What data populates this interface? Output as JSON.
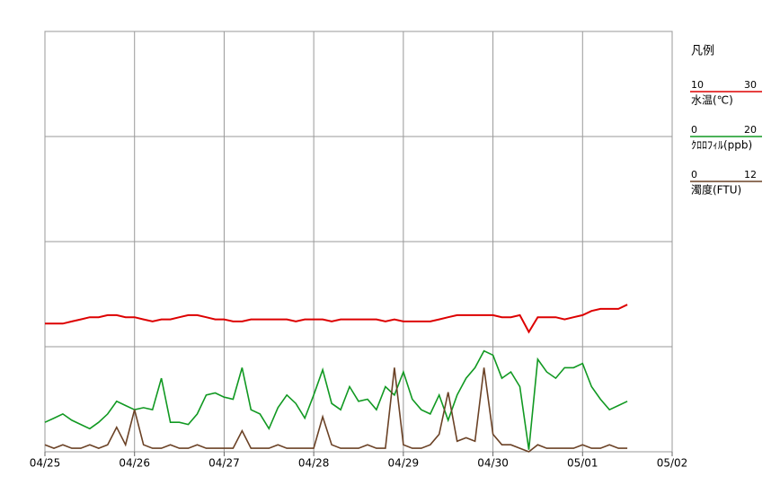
{
  "chart_data": {
    "type": "line",
    "legend_title": "凡例",
    "grid": true,
    "xlim": [
      0,
      7
    ],
    "xticks": [
      {
        "value": 0,
        "label": "04/25"
      },
      {
        "value": 1,
        "label": "04/26"
      },
      {
        "value": 2,
        "label": "04/27"
      },
      {
        "value": 3,
        "label": "04/28"
      },
      {
        "value": 4,
        "label": "04/29"
      },
      {
        "value": 5,
        "label": "04/30"
      },
      {
        "value": 6,
        "label": "05/01"
      },
      {
        "value": 7,
        "label": "05/02"
      }
    ],
    "x": [
      0,
      0.1,
      0.2,
      0.3,
      0.4,
      0.5,
      0.6,
      0.7,
      0.8,
      0.9,
      1,
      1.1,
      1.2,
      1.3,
      1.4,
      1.5,
      1.6,
      1.7,
      1.8,
      1.9,
      2,
      2.1,
      2.2,
      2.3,
      2.4,
      2.5,
      2.6,
      2.7,
      2.8,
      2.9,
      3,
      3.1,
      3.2,
      3.3,
      3.4,
      3.5,
      3.6,
      3.7,
      3.8,
      3.9,
      4,
      4.1,
      4.2,
      4.3,
      4.4,
      4.5,
      4.6,
      4.7,
      4.8,
      4.9,
      5,
      5.1,
      5.2,
      5.3,
      5.4,
      5.5,
      5.6,
      5.7,
      5.8,
      5.9,
      6,
      6.1,
      6.2,
      6.3,
      6.4,
      6.5
    ],
    "series": [
      {
        "name": "水温(℃)",
        "color": "#dd0000",
        "ylim": [
          10,
          30
        ],
        "yticks": [
          10,
          15,
          20,
          25,
          30
        ],
        "values": [
          16.1,
          16.1,
          16.1,
          16.2,
          16.3,
          16.4,
          16.4,
          16.5,
          16.5,
          16.4,
          16.4,
          16.3,
          16.2,
          16.3,
          16.3,
          16.4,
          16.5,
          16.5,
          16.4,
          16.3,
          16.3,
          16.2,
          16.2,
          16.3,
          16.3,
          16.3,
          16.3,
          16.3,
          16.2,
          16.3,
          16.3,
          16.3,
          16.2,
          16.3,
          16.3,
          16.3,
          16.3,
          16.3,
          16.2,
          16.3,
          16.2,
          16.2,
          16.2,
          16.2,
          16.3,
          16.4,
          16.5,
          16.5,
          16.5,
          16.5,
          16.5,
          16.4,
          16.4,
          16.5,
          15.7,
          16.4,
          16.4,
          16.4,
          16.3,
          16.4,
          16.5,
          16.7,
          16.8,
          16.8,
          16.8,
          17.0
        ]
      },
      {
        "name": "ｸﾛﾛﾌｨﾙ(ppb)",
        "color": "#119922",
        "ylim": [
          0,
          20
        ],
        "values": [
          1.4,
          1.6,
          1.8,
          1.5,
          1.3,
          1.1,
          1.4,
          1.8,
          2.4,
          2.2,
          2.0,
          2.1,
          2.0,
          3.5,
          1.4,
          1.4,
          1.3,
          1.8,
          2.7,
          2.8,
          2.6,
          2.5,
          4.0,
          2.0,
          1.8,
          1.1,
          2.1,
          2.7,
          2.3,
          1.6,
          2.7,
          3.9,
          2.3,
          2.0,
          3.1,
          2.4,
          2.5,
          2.0,
          3.1,
          2.7,
          3.8,
          2.5,
          2.0,
          1.8,
          2.7,
          1.5,
          2.7,
          3.5,
          4.0,
          4.8,
          4.6,
          3.5,
          3.8,
          3.1,
          0.1,
          4.4,
          3.8,
          3.5,
          4.0,
          4.0,
          4.2,
          3.1,
          2.5,
          2.0,
          2.2,
          2.4
        ]
      },
      {
        "name": "濁度(FTU)",
        "color": "#6b4226",
        "ylim": [
          0,
          12
        ],
        "values": [
          0.2,
          0.1,
          0.2,
          0.1,
          0.1,
          0.2,
          0.1,
          0.2,
          0.7,
          0.2,
          1.2,
          0.2,
          0.1,
          0.1,
          0.2,
          0.1,
          0.1,
          0.2,
          0.1,
          0.1,
          0.1,
          0.1,
          0.6,
          0.1,
          0.1,
          0.1,
          0.2,
          0.1,
          0.1,
          0.1,
          0.1,
          1.0,
          0.2,
          0.1,
          0.1,
          0.1,
          0.2,
          0.1,
          0.1,
          2.4,
          0.2,
          0.1,
          0.1,
          0.2,
          0.5,
          1.7,
          0.3,
          0.4,
          0.3,
          2.4,
          0.5,
          0.2,
          0.2,
          0.1,
          0.0,
          0.2,
          0.1,
          0.1,
          0.1,
          0.1,
          0.2,
          0.1,
          0.1,
          0.2,
          0.1,
          0.1
        ]
      }
    ]
  }
}
